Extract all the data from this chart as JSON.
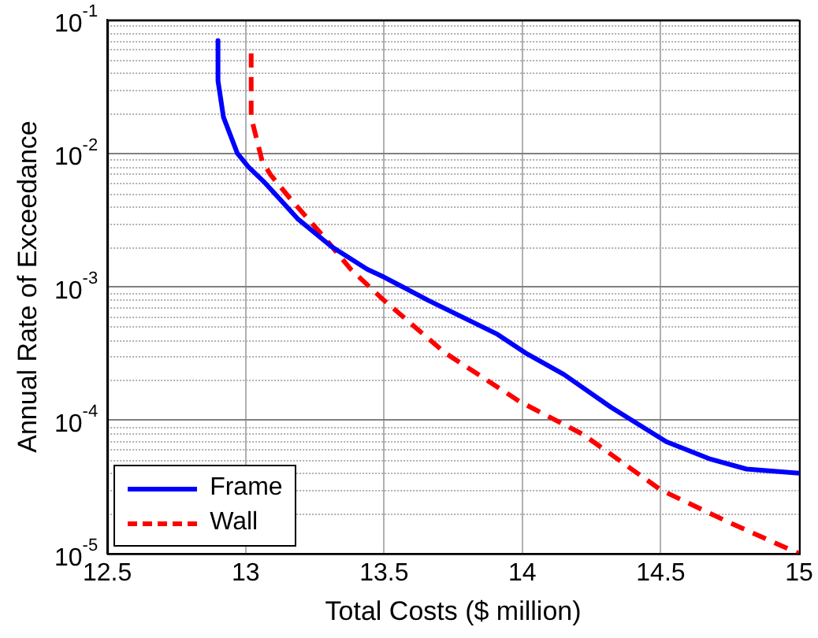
{
  "chart_data": {
    "type": "line",
    "xlabel": "Total Costs ($ million)",
    "ylabel": "Annual Rate of Exceedance",
    "log": "y",
    "grid": true,
    "legend": "bottom left",
    "xlim": [
      12.5,
      15
    ],
    "xticks": [
      12.5,
      13,
      13.5,
      14,
      14.5,
      15
    ],
    "ylim": [
      1e-05,
      0.1
    ],
    "yticks": [
      {
        "value": 1e-05,
        "label": "10$^{-5}$"
      },
      {
        "value": 0.0001,
        "label": "10$^{-4}$"
      },
      {
        "value": 0.001,
        "label": "10$^{-3}$"
      },
      {
        "value": 0.01,
        "label": "10$^{-2}$"
      },
      {
        "value": 0.1,
        "label": "10$^{-1}$"
      }
    ],
    "series": [
      {
        "name": "Frame",
        "color": "#0000ff",
        "line_style": "solid",
        "x": [
          12.9,
          12.9,
          12.92,
          12.97,
          13.01,
          13.07,
          13.19,
          13.31,
          13.44,
          13.5,
          13.66,
          13.91,
          14.01,
          14.15,
          14.32,
          14.52,
          14.68,
          14.81,
          15
        ],
        "values": [
          0.07,
          0.035,
          0.0186,
          0.01,
          0.0079,
          0.006,
          0.0032,
          0.002,
          0.00135,
          0.00118,
          0.00079,
          0.00044,
          0.00032,
          0.00022,
          0.000125,
          6.9e-05,
          5.1e-05,
          4.3e-05,
          4e-05
        ]
      },
      {
        "name": "Wall",
        "color": "#ff0000",
        "line_style": "dashed",
        "x": [
          13.02,
          13.02,
          13.06,
          13.09,
          13.16,
          13.28,
          13.38,
          13.5,
          13.72,
          13.99,
          14.22,
          14.5,
          14.75,
          15
        ],
        "values": [
          0.056,
          0.0186,
          0.0087,
          0.0069,
          0.0046,
          0.0024,
          0.00135,
          0.00079,
          0.00032,
          0.000138,
          7.8e-05,
          3e-05,
          1.7e-05,
          1e-05
        ]
      }
    ]
  }
}
